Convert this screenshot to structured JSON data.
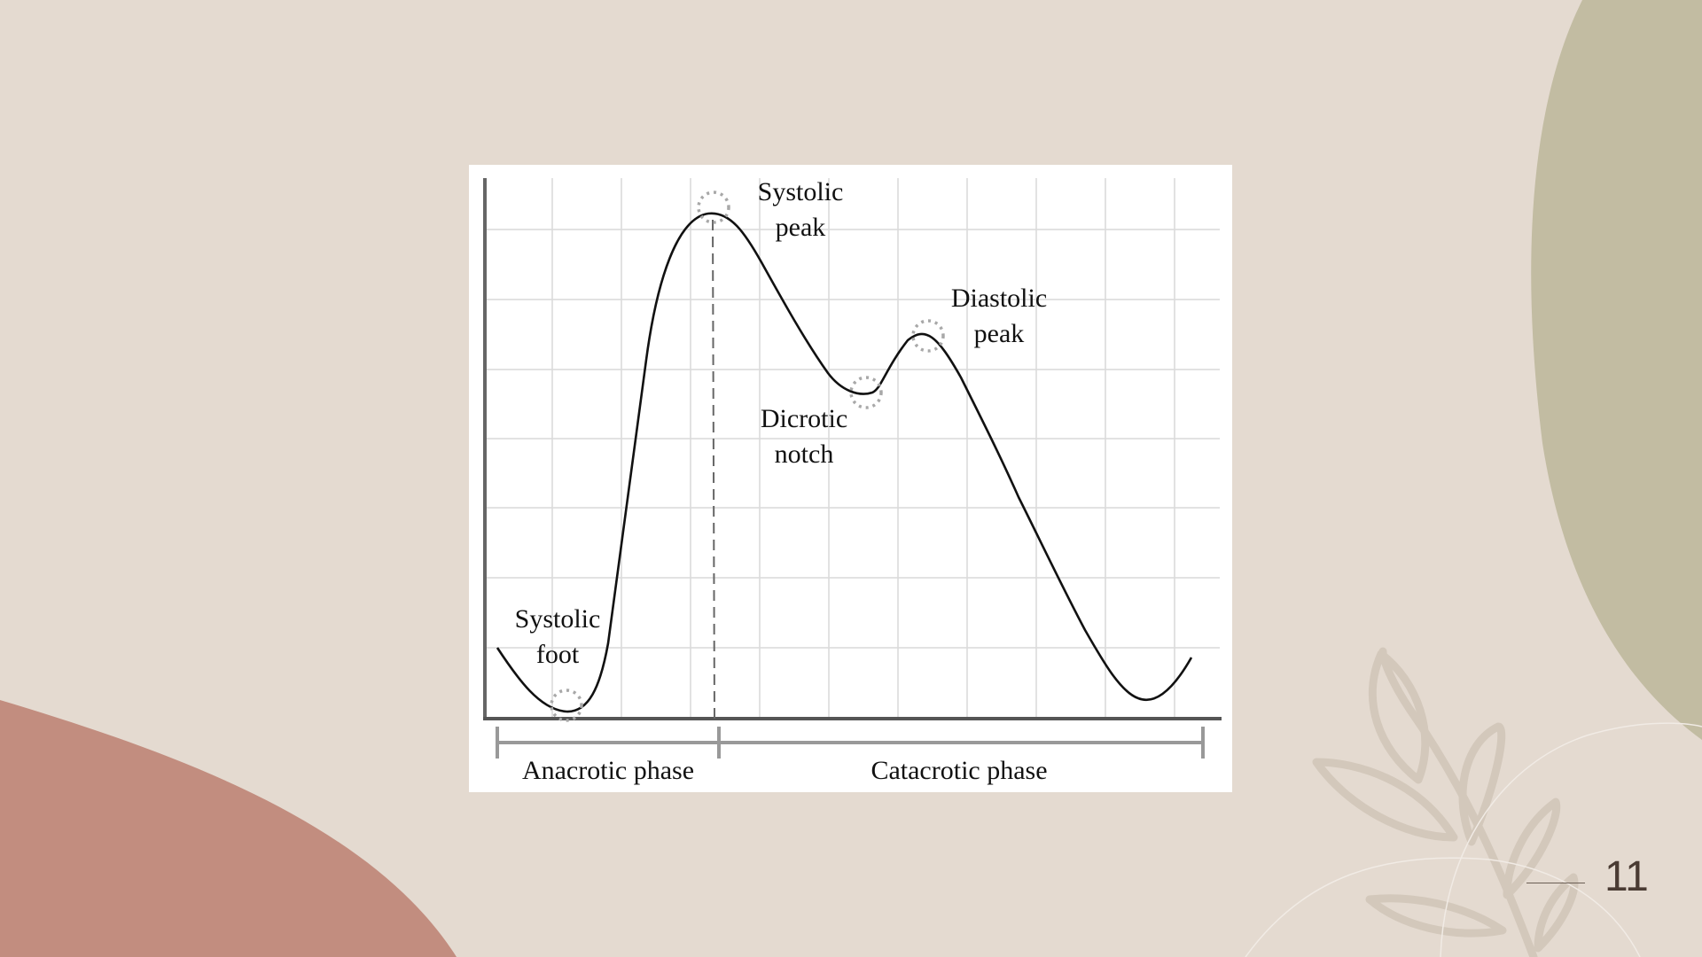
{
  "slide": {
    "page_number": "11",
    "colors": {
      "background": "#e4dad0",
      "terracotta_shape": "#c28d7f",
      "olive_shape": "#c2bca2",
      "leaf_outline": "#d3c8bb"
    }
  },
  "diagram": {
    "labels": {
      "systolic_peak": [
        "Systolic",
        "peak"
      ],
      "diastolic_peak": [
        "Diastolic",
        "peak"
      ],
      "dicrotic_notch": [
        "Dicrotic",
        "notch"
      ],
      "systolic_foot": [
        "Systolic",
        "foot"
      ],
      "anacrotic_phase": "Anacrotic phase",
      "catacrotic_phase": "Catacrotic phase"
    }
  }
}
